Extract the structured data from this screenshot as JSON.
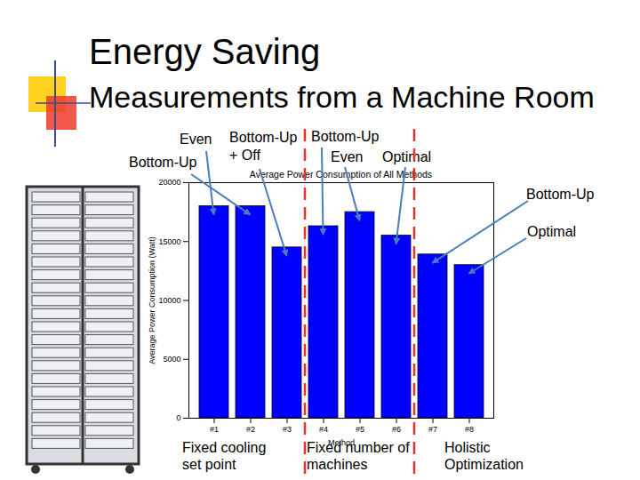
{
  "slide": {
    "title": "Energy Saving",
    "subtitle": "Measurements from a Machine Room"
  },
  "chart_data": {
    "type": "bar",
    "title": "Average Power Consumption of All Methods",
    "x_label": "Method",
    "y_label": "Average Power Consumption (Watt)",
    "categories": [
      "#1",
      "#2",
      "#3",
      "#4",
      "#5",
      "#6",
      "#7",
      "#8"
    ],
    "values": [
      18000,
      18000,
      14500,
      16300,
      17500,
      15500,
      13900,
      13000
    ],
    "color": "#0000ff",
    "ylim": [
      0,
      20000
    ],
    "yticks": [
      0,
      5000,
      10000,
      15000,
      20000
    ],
    "annotations": [
      {
        "text": "Even",
        "category": "#1"
      },
      {
        "text": "Bottom-Up",
        "category": "#2"
      },
      {
        "text": "Bottom-Up + Off",
        "category": "#3"
      },
      {
        "text": "Bottom-Up",
        "category": "#4"
      },
      {
        "text": "Even",
        "category": "#5"
      },
      {
        "text": "Optimal",
        "category": "#6"
      },
      {
        "text": "Bottom-Up",
        "category": "#7"
      },
      {
        "text": "Optimal",
        "category": "#8"
      }
    ],
    "groups": [
      {
        "label": "Fixed cooling set point",
        "categories": [
          "#1",
          "#2",
          "#3"
        ]
      },
      {
        "label": "Fixed number of machines",
        "categories": [
          "#4",
          "#5",
          "#6"
        ]
      },
      {
        "label": "Holistic Optimization",
        "categories": [
          "#7",
          "#8"
        ]
      }
    ]
  }
}
